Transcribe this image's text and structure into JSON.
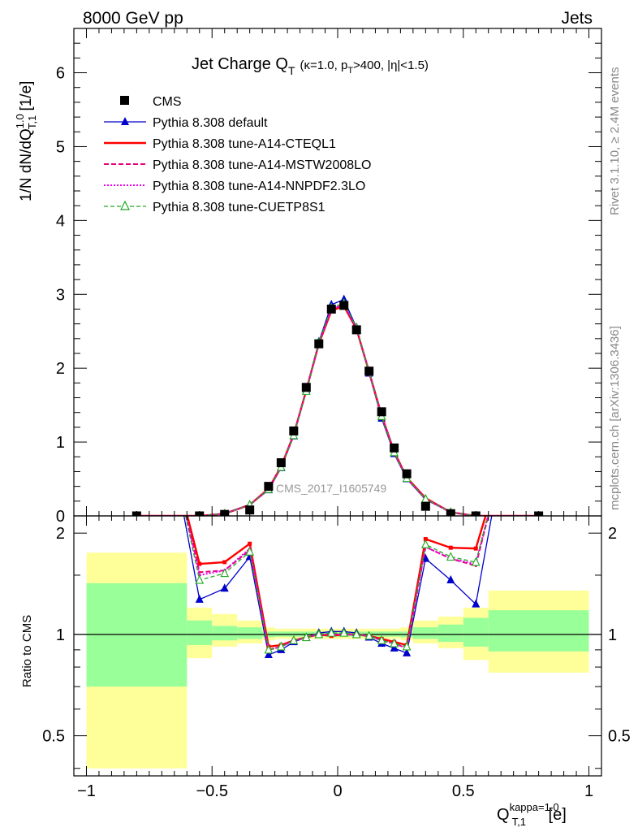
{
  "header": {
    "left": "8000 GeV pp",
    "right": "Jets"
  },
  "side_labels": {
    "rivet": "Rivet 3.1.10, ≥ 2.4M events",
    "mcplots": "mcplots.cern.ch [arXiv:1306.3436]"
  },
  "watermark": "CMS_2017_I1605749",
  "title": {
    "main": "Jet Charge Q",
    "main_sub": "T",
    "cuts_a": "(κ=1.0, p",
    "cuts_sub": "T",
    "cuts_b": ">400, |η|<1.5)"
  },
  "ylabel": {
    "a": "1/N dN/dQ",
    "sup": "1.0",
    "sub": "T,1",
    "b": " [1/e]"
  },
  "xlabel": {
    "a": "Q",
    "sup": "kappa=1.0",
    "sub": "T,1",
    "b": " [e]"
  },
  "ratio_ylabel": "Ratio to CMS",
  "legend": [
    {
      "label": "CMS",
      "color": "#000000"
    },
    {
      "label": "Pythia 8.308 default",
      "color": "#0000cc"
    },
    {
      "label": "Pythia 8.308 tune-A14-CTEQL1",
      "color": "#ff0000"
    },
    {
      "label": "Pythia 8.308 tune-A14-MSTW2008LO",
      "color": "#e6007a"
    },
    {
      "label": "Pythia 8.308 tune-A14-NNPDF2.3LO",
      "color": "#ee00ee"
    },
    {
      "label": "Pythia 8.308 tune-CUETP8S1",
      "color": "#22aa22"
    }
  ],
  "chart_data": [
    {
      "type": "line",
      "panel": "main",
      "xlim": [
        -1.05,
        1.05
      ],
      "ylim": [
        0,
        6.6
      ],
      "yticks": [
        "0",
        "1",
        "2",
        "3",
        "4",
        "5",
        "6"
      ],
      "grid": false,
      "legend_position": "top-left",
      "data_x": [
        -0.8,
        -0.55,
        -0.45,
        -0.35,
        -0.275,
        -0.225,
        -0.175,
        -0.125,
        -0.075,
        -0.025,
        0.025,
        0.075,
        0.125,
        0.175,
        0.225,
        0.275,
        0.35,
        0.45,
        0.55,
        0.8
      ],
      "data_y": [
        0.0,
        0.0,
        0.02,
        0.08,
        0.4,
        0.72,
        1.15,
        1.74,
        2.33,
        2.8,
        2.85,
        2.52,
        1.96,
        1.41,
        0.92,
        0.57,
        0.13,
        0.03,
        0.0,
        0.0
      ],
      "mc_x": [
        -0.8,
        -0.55,
        -0.45,
        -0.35,
        -0.275,
        -0.225,
        -0.175,
        -0.125,
        -0.075,
        -0.025,
        0.025,
        0.075,
        0.125,
        0.175,
        0.225,
        0.275,
        0.35,
        0.45,
        0.55,
        0.8
      ],
      "series": [
        {
          "name": "Pythia 8.308 default",
          "values": [
            0.0,
            0.0,
            0.03,
            0.15,
            0.35,
            0.65,
            1.08,
            1.7,
            2.36,
            2.86,
            2.93,
            2.55,
            1.93,
            1.32,
            0.84,
            0.5,
            0.22,
            0.05,
            0.0,
            0.0
          ]
        },
        {
          "name": "Pythia 8.308 tune-A14-CTEQL1",
          "values": [
            0.0,
            0.0,
            0.03,
            0.15,
            0.37,
            0.67,
            1.1,
            1.7,
            2.33,
            2.78,
            2.84,
            2.53,
            1.95,
            1.36,
            0.87,
            0.52,
            0.24,
            0.05,
            0.0,
            0.0
          ]
        },
        {
          "name": "Pythia 8.308 tune-A14-MSTW2008LO",
          "values": [
            0.0,
            0.0,
            0.03,
            0.15,
            0.36,
            0.66,
            1.09,
            1.7,
            2.34,
            2.8,
            2.86,
            2.54,
            1.95,
            1.35,
            0.86,
            0.51,
            0.23,
            0.05,
            0.0,
            0.0
          ]
        },
        {
          "name": "Pythia 8.308 tune-A14-NNPDF2.3LO",
          "values": [
            0.0,
            0.0,
            0.03,
            0.15,
            0.36,
            0.66,
            1.09,
            1.7,
            2.34,
            2.8,
            2.86,
            2.54,
            1.95,
            1.35,
            0.86,
            0.51,
            0.23,
            0.05,
            0.0,
            0.0
          ]
        },
        {
          "name": "Pythia 8.308 tune-CUETP8S1",
          "values": [
            0.0,
            0.0,
            0.03,
            0.15,
            0.36,
            0.66,
            1.09,
            1.69,
            2.35,
            2.82,
            2.88,
            2.55,
            1.95,
            1.35,
            0.86,
            0.51,
            0.23,
            0.05,
            0.0,
            0.0
          ]
        }
      ]
    },
    {
      "type": "line",
      "panel": "ratio",
      "xlim": [
        -1.05,
        1.05
      ],
      "ylim": [
        0.38,
        2.25
      ],
      "yticks": [
        "0.5",
        "1",
        "2"
      ],
      "xticks": [
        "−1",
        "−0.5",
        "0",
        "0.5",
        "1"
      ],
      "reference_line": 1,
      "mc_x": [
        -0.55,
        -0.45,
        -0.35,
        -0.275,
        -0.225,
        -0.175,
        -0.125,
        -0.075,
        -0.025,
        0.025,
        0.075,
        0.125,
        0.175,
        0.225,
        0.275,
        0.35,
        0.45,
        0.55
      ],
      "bands": [
        {
          "x0": -1.0,
          "x1": -0.6,
          "y_low": 0.4,
          "y_high": 1.75,
          "g_low": 0.7,
          "g_high": 1.42
        },
        {
          "x0": -0.6,
          "x1": -0.5,
          "y_low": 0.85,
          "y_high": 1.2,
          "g_low": 0.93,
          "g_high": 1.1
        },
        {
          "x0": -0.5,
          "x1": -0.4,
          "y_low": 0.92,
          "y_high": 1.15,
          "g_low": 0.96,
          "g_high": 1.06
        },
        {
          "x0": -0.4,
          "x1": -0.3,
          "y_low": 0.94,
          "y_high": 1.1,
          "g_low": 0.97,
          "g_high": 1.05
        },
        {
          "x0": -0.3,
          "x1": -0.25,
          "y_low": 0.96,
          "y_high": 1.05,
          "g_low": 0.98,
          "g_high": 1.02
        },
        {
          "x0": -0.25,
          "x1": 0.25,
          "y_low": 0.97,
          "y_high": 1.04,
          "g_low": 0.985,
          "g_high": 1.02
        },
        {
          "x0": 0.25,
          "x1": 0.3,
          "y_low": 0.96,
          "y_high": 1.05,
          "g_low": 0.98,
          "g_high": 1.02
        },
        {
          "x0": 0.3,
          "x1": 0.4,
          "y_low": 0.94,
          "y_high": 1.1,
          "g_low": 0.97,
          "g_high": 1.05
        },
        {
          "x0": 0.4,
          "x1": 0.5,
          "y_low": 0.91,
          "y_high": 1.13,
          "g_low": 0.95,
          "g_high": 1.07
        },
        {
          "x0": 0.5,
          "x1": 0.6,
          "y_low": 0.84,
          "y_high": 1.2,
          "g_low": 0.92,
          "g_high": 1.12
        },
        {
          "x0": 0.6,
          "x1": 1.0,
          "y_low": 0.77,
          "y_high": 1.35,
          "g_low": 0.89,
          "g_high": 1.18
        }
      ],
      "series": [
        {
          "name": "Pythia 8.308 default",
          "values": [
            1.27,
            1.37,
            1.7,
            0.87,
            0.9,
            0.95,
            0.98,
            1.01,
            1.02,
            1.02,
            1.01,
            0.98,
            0.94,
            0.91,
            0.88,
            1.68,
            1.45,
            1.23
          ]
        },
        {
          "name": "Pythia 8.308 tune-A14-CTEQL1",
          "values": [
            1.62,
            1.64,
            1.86,
            0.92,
            0.93,
            0.96,
            0.98,
            1.0,
            0.99,
            1.0,
            1.0,
            0.99,
            0.97,
            0.95,
            0.93,
            1.92,
            1.81,
            1.8
          ]
        },
        {
          "name": "Pythia 8.308 tune-A14-MSTW2008LO",
          "values": [
            1.53,
            1.55,
            1.78,
            0.9,
            0.92,
            0.96,
            0.98,
            1.0,
            1.0,
            1.0,
            1.0,
            0.99,
            0.96,
            0.94,
            0.91,
            1.82,
            1.68,
            1.6
          ]
        },
        {
          "name": "Pythia 8.308 tune-A14-NNPDF2.3LO",
          "values": [
            1.5,
            1.55,
            1.8,
            0.9,
            0.92,
            0.96,
            0.98,
            1.0,
            1.0,
            1.0,
            1.0,
            0.99,
            0.96,
            0.94,
            0.91,
            1.82,
            1.68,
            1.62
          ]
        },
        {
          "name": "Pythia 8.308 tune-CUETP8S1",
          "values": [
            1.45,
            1.52,
            1.76,
            0.9,
            0.92,
            0.96,
            0.98,
            1.0,
            1.01,
            1.01,
            1.0,
            0.99,
            0.96,
            0.94,
            0.92,
            1.85,
            1.7,
            1.64
          ]
        }
      ]
    }
  ]
}
